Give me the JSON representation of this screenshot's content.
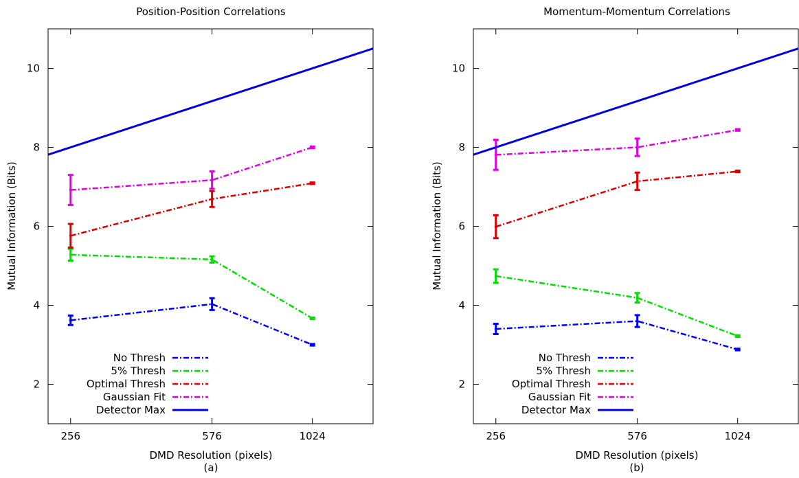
{
  "chart_data": [
    {
      "type": "line",
      "panel_label": "(a)",
      "title": "Position-Position Correlations",
      "xlabel": "DMD Resolution (pixels)",
      "ylabel": "Mutual Information (Bits)",
      "x_scale": "log",
      "xlim": [
        225,
        1450
      ],
      "ylim": [
        1,
        11
      ],
      "x_ticks": [
        256,
        576,
        1024
      ],
      "y_ticks": [
        2,
        4,
        6,
        8,
        10
      ],
      "grid": false,
      "legend_position": "bottom-left",
      "series": [
        {
          "name": "No Thresh",
          "color": "#0000ff",
          "dash": "dash-dot",
          "x": [
            256,
            576,
            1024
          ],
          "y": [
            3.62,
            4.03,
            3.0
          ],
          "err": [
            0.12,
            0.15,
            0.02
          ]
        },
        {
          "name": "5% Thresh",
          "color": "#00e000",
          "dash": "dash-dot",
          "x": [
            256,
            576,
            1024
          ],
          "y": [
            5.28,
            5.16,
            3.67
          ],
          "err": [
            0.15,
            0.08,
            0.02
          ]
        },
        {
          "name": "Optimal Thresh",
          "color": "#e00000",
          "dash": "dash-dot",
          "x": [
            256,
            576,
            1024
          ],
          "y": [
            5.76,
            6.69,
            7.09
          ],
          "err": [
            0.3,
            0.2,
            0.02
          ]
        },
        {
          "name": "Gaussian Fit",
          "color": "#e000e0",
          "dash": "dash-dot",
          "x": [
            256,
            576,
            1024
          ],
          "y": [
            6.92,
            7.17,
            8.0
          ],
          "err": [
            0.38,
            0.22,
            0.02
          ]
        },
        {
          "name": "Detector Max",
          "color": "#0000e0",
          "dash": "solid",
          "function": "log2",
          "x": [
            225,
            256,
            576,
            1024,
            1450
          ],
          "y": [
            7.66,
            8.0,
            9.17,
            10.0,
            10.24
          ]
        }
      ]
    },
    {
      "type": "line",
      "panel_label": "(b)",
      "title": "Momentum-Momentum Correlations",
      "xlabel": "DMD Resolution (pixels)",
      "ylabel": "Mutual Information (Bits)",
      "x_scale": "log",
      "xlim": [
        225,
        1450
      ],
      "ylim": [
        1,
        11
      ],
      "x_ticks": [
        256,
        576,
        1024
      ],
      "y_ticks": [
        2,
        4,
        6,
        8,
        10
      ],
      "grid": false,
      "legend_position": "bottom-left",
      "series": [
        {
          "name": "No Thresh",
          "color": "#0000ff",
          "dash": "dash-dot",
          "x": [
            256,
            576,
            1024
          ],
          "y": [
            3.4,
            3.6,
            2.88
          ],
          "err": [
            0.13,
            0.15,
            0.02
          ]
        },
        {
          "name": "5% Thresh",
          "color": "#00e000",
          "dash": "dash-dot",
          "x": [
            256,
            576,
            1024
          ],
          "y": [
            4.74,
            4.19,
            3.22
          ],
          "err": [
            0.17,
            0.12,
            0.02
          ]
        },
        {
          "name": "Optimal Thresh",
          "color": "#e00000",
          "dash": "dash-dot",
          "x": [
            256,
            576,
            1024
          ],
          "y": [
            5.99,
            7.14,
            7.39
          ],
          "err": [
            0.29,
            0.22,
            0.02
          ]
        },
        {
          "name": "Gaussian Fit",
          "color": "#e000e0",
          "dash": "dash-dot",
          "x": [
            256,
            576,
            1024
          ],
          "y": [
            7.81,
            8.0,
            8.44
          ],
          "err": [
            0.38,
            0.22,
            0.02
          ]
        },
        {
          "name": "Detector Max",
          "color": "#0000e0",
          "dash": "solid",
          "function": "log2",
          "x": [
            225,
            256,
            576,
            1024,
            1450
          ],
          "y": [
            7.66,
            8.0,
            9.17,
            10.0,
            10.24
          ]
        }
      ]
    }
  ]
}
